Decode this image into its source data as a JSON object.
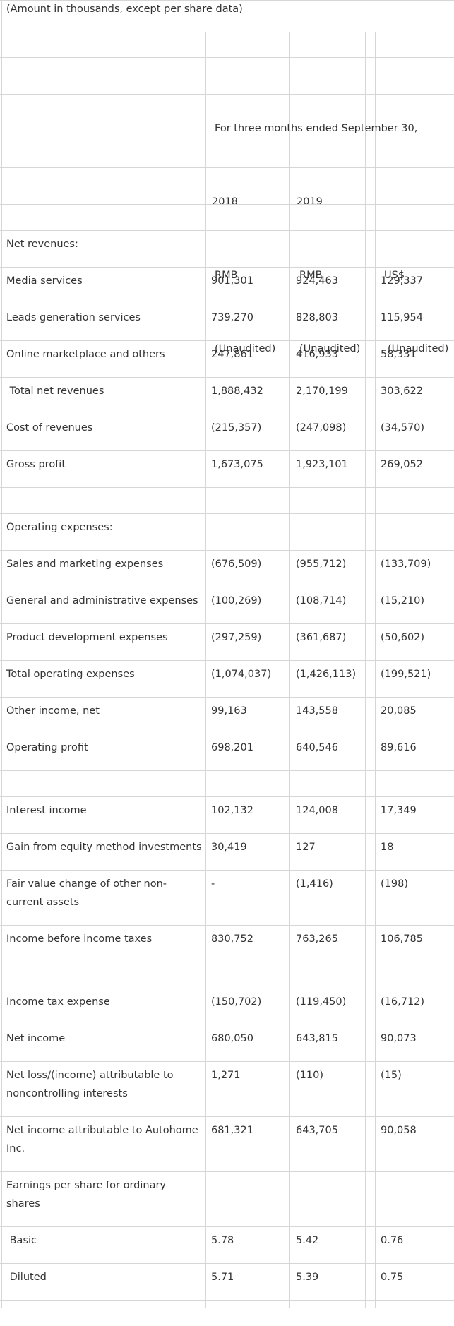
{
  "header": {
    "note": "(Amount in thousands, except per share data)",
    "period": "For three months ended September 30,",
    "years": [
      "2018",
      "2019"
    ],
    "currencies": [
      "RMB",
      "RMB",
      "US$"
    ],
    "status": [
      "(Unaudited)",
      "(Unaudited)",
      "(Unaudited)"
    ]
  },
  "rows": [
    {
      "label": "",
      "values": [
        "",
        "",
        ""
      ]
    },
    {
      "label": "Net revenues:",
      "values": [
        "",
        "",
        ""
      ]
    },
    {
      "label": "Media services",
      "values": [
        "901,301",
        "924,463",
        "129,337"
      ]
    },
    {
      "label": "Leads generation services",
      "values": [
        "739,270",
        "828,803",
        "115,954"
      ]
    },
    {
      "label": "Online marketplace and others",
      "values": [
        "247,861",
        "416,933",
        "58,331"
      ]
    },
    {
      "label": " Total net revenues",
      "values": [
        "1,888,432",
        "2,170,199",
        "303,622"
      ]
    },
    {
      "label": "Cost of revenues",
      "values": [
        "(215,357)",
        "(247,098)",
        "(34,570)"
      ]
    },
    {
      "label": "Gross profit",
      "values": [
        "1,673,075",
        "1,923,101",
        "269,052"
      ]
    },
    {
      "label": "",
      "values": [
        "",
        "",
        ""
      ]
    },
    {
      "label": "Operating expenses:",
      "values": [
        "",
        "",
        ""
      ]
    },
    {
      "label": "Sales and marketing expenses",
      "values": [
        "(676,509)",
        "(955,712)",
        "(133,709)"
      ]
    },
    {
      "label": "General and administrative expenses",
      "values": [
        "(100,269)",
        "(108,714)",
        "(15,210)"
      ]
    },
    {
      "label": "Product development expenses",
      "values": [
        "(297,259)",
        "(361,687)",
        "(50,602)"
      ]
    },
    {
      "label": "Total operating expenses",
      "values": [
        "(1,074,037)",
        "(1,426,113)",
        "(199,521)"
      ]
    },
    {
      "label": "Other income, net",
      "values": [
        "99,163",
        "143,558",
        "20,085"
      ]
    },
    {
      "label": "Operating profit",
      "values": [
        "698,201",
        "640,546",
        "89,616"
      ]
    },
    {
      "label": "",
      "values": [
        "",
        "",
        ""
      ]
    },
    {
      "label": "Interest income",
      "values": [
        "102,132",
        "124,008",
        "17,349"
      ]
    },
    {
      "label": "Gain from equity method investments",
      "values": [
        "30,419",
        "127",
        "18"
      ]
    },
    {
      "label": "Fair value change of other non-current assets",
      "values": [
        "-",
        "(1,416)",
        "(198)"
      ]
    },
    {
      "label": "Income before income taxes",
      "values": [
        "830,752",
        "763,265",
        "106,785"
      ]
    },
    {
      "label": "",
      "values": [
        "",
        "",
        ""
      ]
    },
    {
      "label": "Income tax expense",
      "values": [
        "(150,702)",
        "(119,450)",
        "(16,712)"
      ]
    },
    {
      "label": "Net income",
      "values": [
        "680,050",
        "643,815",
        "90,073"
      ]
    },
    {
      "label": "Net loss/(income) attributable to noncontrolling interests",
      "values": [
        "1,271",
        "(110)",
        "(15)"
      ]
    },
    {
      "label": "Net income attributable to Autohome Inc.",
      "values": [
        "681,321",
        "643,705",
        "90,058"
      ]
    },
    {
      "label": "Earnings per share for ordinary shares",
      "values": [
        "",
        "",
        ""
      ]
    },
    {
      "label": " Basic",
      "values": [
        "5.78",
        "5.42",
        "0.76"
      ]
    },
    {
      "label": " Diluted",
      "values": [
        "5.71",
        "5.39",
        "0.75"
      ]
    },
    {
      "label": "",
      "values": [
        "",
        "",
        ""
      ]
    }
  ]
}
